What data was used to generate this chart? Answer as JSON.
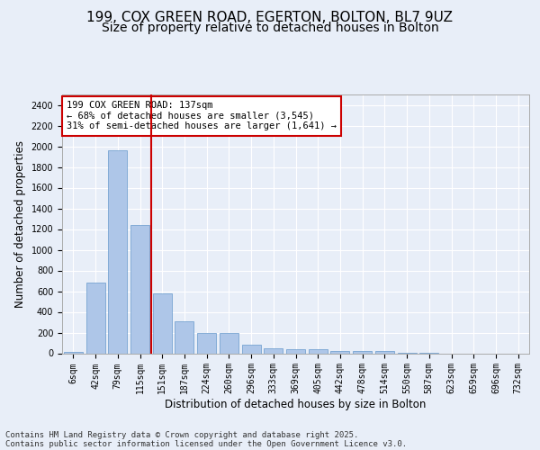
{
  "title_line1": "199, COX GREEN ROAD, EGERTON, BOLTON, BL7 9UZ",
  "title_line2": "Size of property relative to detached houses in Bolton",
  "xlabel": "Distribution of detached houses by size in Bolton",
  "ylabel": "Number of detached properties",
  "categories": [
    "6sqm",
    "42sqm",
    "79sqm",
    "115sqm",
    "151sqm",
    "187sqm",
    "224sqm",
    "260sqm",
    "296sqm",
    "333sqm",
    "369sqm",
    "405sqm",
    "442sqm",
    "478sqm",
    "514sqm",
    "550sqm",
    "587sqm",
    "623sqm",
    "659sqm",
    "696sqm",
    "732sqm"
  ],
  "values": [
    15,
    680,
    1960,
    1240,
    575,
    305,
    200,
    200,
    80,
    45,
    35,
    35,
    20,
    20,
    20,
    5,
    5,
    0,
    0,
    0,
    0
  ],
  "bar_color": "#aec6e8",
  "bar_edge_color": "#6699cc",
  "vline_x_idx": 3.5,
  "vline_color": "#cc0000",
  "annotation_text": "199 COX GREEN ROAD: 137sqm\n← 68% of detached houses are smaller (3,545)\n31% of semi-detached houses are larger (1,641) →",
  "annotation_box_color": "#ffffff",
  "annotation_box_edge": "#cc0000",
  "ylim": [
    0,
    2500
  ],
  "yticks": [
    0,
    200,
    400,
    600,
    800,
    1000,
    1200,
    1400,
    1600,
    1800,
    2000,
    2200,
    2400
  ],
  "footer_line1": "Contains HM Land Registry data © Crown copyright and database right 2025.",
  "footer_line2": "Contains public sector information licensed under the Open Government Licence v3.0.",
  "bg_color": "#e8eef8",
  "plot_bg_color": "#e8eef8",
  "grid_color": "#ffffff",
  "title_fontsize": 11,
  "subtitle_fontsize": 10,
  "tick_fontsize": 7,
  "label_fontsize": 8.5,
  "footer_fontsize": 6.5,
  "annotation_fontsize": 7.5
}
